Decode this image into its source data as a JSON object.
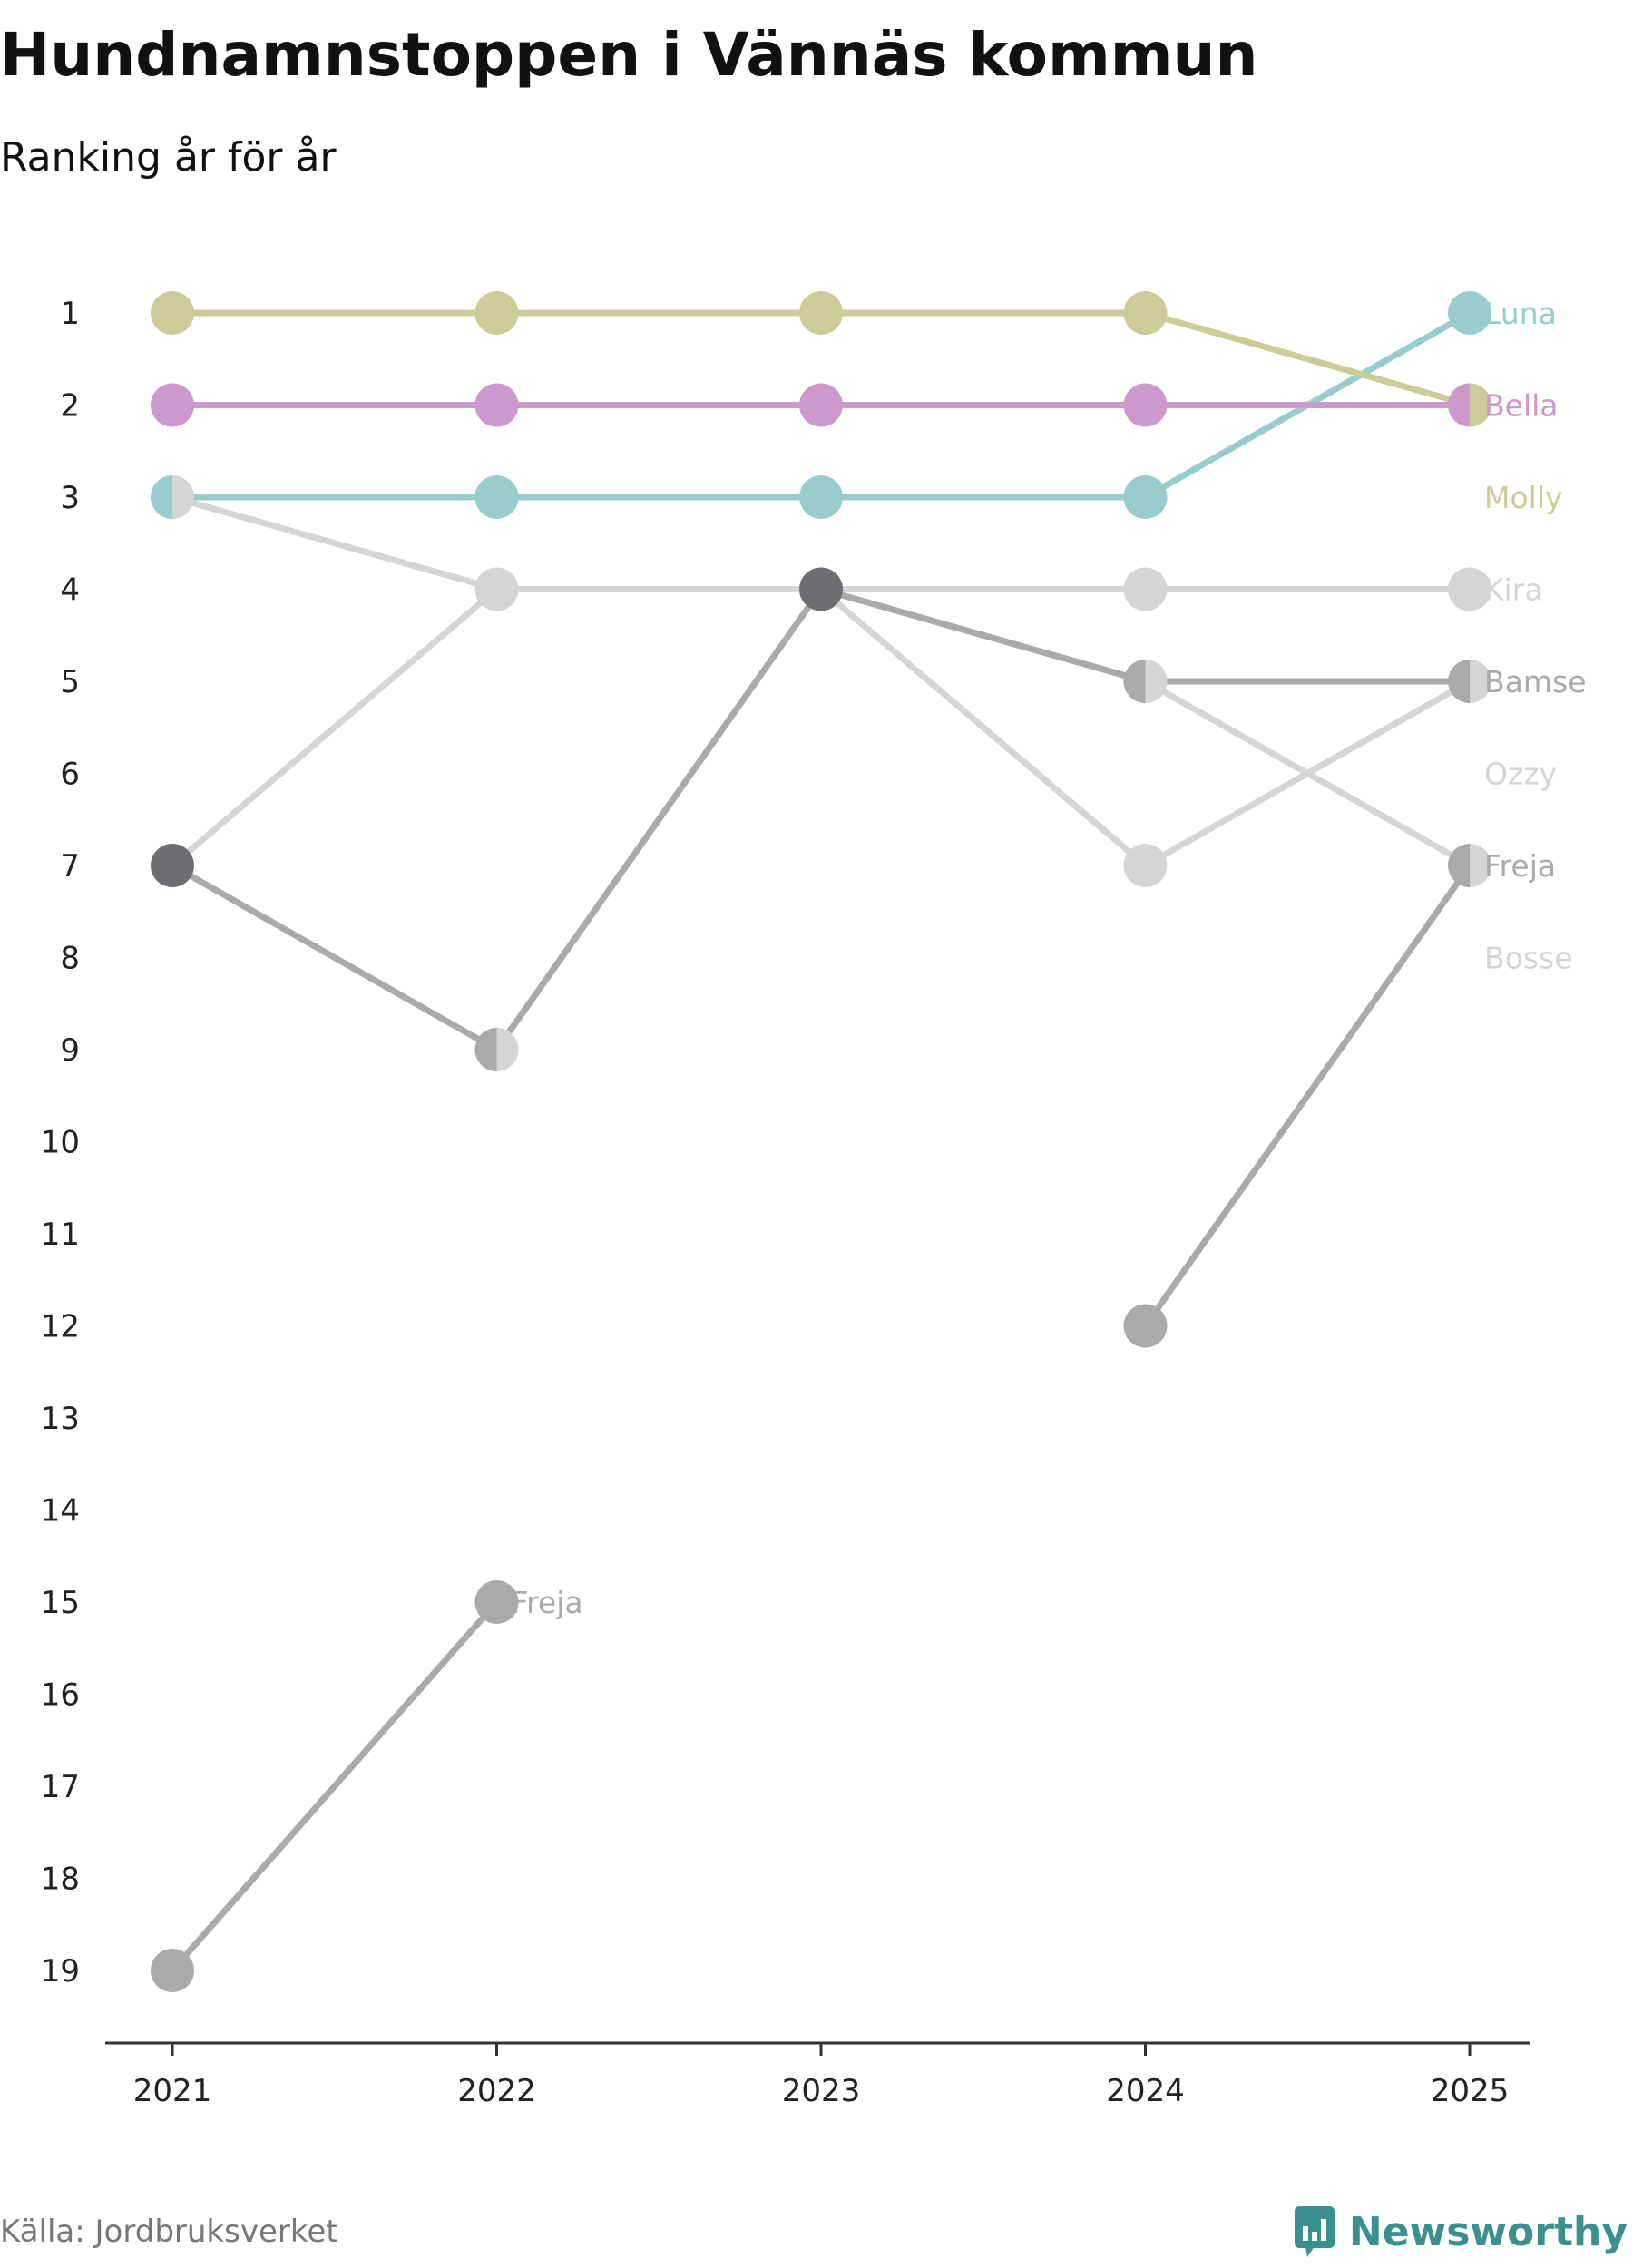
{
  "title": "Hundnamnstoppen i Vännäs kommun",
  "subtitle": "Ranking år för år",
  "source": "Källa: Jordbruksverket",
  "brand": "Newsworthy",
  "colors": {
    "molly": "#cccc99",
    "bella": "#cc99cc",
    "luna": "#99cccc",
    "light_gray": "#d5d5d5",
    "mid_gray": "#aaaaaa",
    "dark_gray": "#6e6e72",
    "brand": "#3a8f8f"
  },
  "chart_data": {
    "type": "line",
    "subtype": "bump",
    "categories": [
      "2021",
      "2022",
      "2023",
      "2024",
      "2025"
    ],
    "ylim": [
      1,
      19
    ],
    "y_reversed": true,
    "y_ticks": [
      "1",
      "2",
      "3",
      "4",
      "5",
      "6",
      "7",
      "8",
      "9",
      "10",
      "11",
      "12",
      "13",
      "14",
      "15",
      "16",
      "17",
      "18",
      "19"
    ],
    "series": [
      {
        "name": "Molly",
        "color": "molly",
        "ranks": [
          1,
          1,
          1,
          1,
          2
        ],
        "end_label_rank": 3
      },
      {
        "name": "Bella",
        "color": "bella",
        "ranks": [
          2,
          2,
          2,
          2,
          2
        ],
        "end_label_rank": 2
      },
      {
        "name": "Luna",
        "color": "luna",
        "ranks": [
          3,
          3,
          3,
          3,
          1
        ],
        "end_label_rank": 1
      },
      {
        "name": "Kira",
        "color": "light_gray",
        "ranks": [
          7,
          4,
          4,
          4,
          4
        ],
        "end_label_rank": 4
      },
      {
        "name": "Bamse",
        "color": "mid_gray",
        "ranks": [
          7,
          9,
          4,
          5,
          5
        ],
        "end_label_rank": 5
      },
      {
        "name": "Ozzy",
        "color": "light_gray",
        "ranks": [
          3,
          4,
          4,
          7,
          5
        ],
        "end_label_rank": 6
      },
      {
        "name": "Freja",
        "color": "light_gray",
        "ranks": [
          null,
          null,
          4,
          5,
          7
        ],
        "end_label_rank": 7
      },
      {
        "name": "Bosse",
        "color": "mid_gray",
        "ranks": [
          null,
          null,
          null,
          12,
          7
        ],
        "end_label_rank": 8
      },
      {
        "name": "Freja 2021–2022",
        "color": "mid_gray",
        "ranks": [
          19,
          15,
          null,
          null,
          null
        ]
      }
    ],
    "end_labels": [
      {
        "text": "Luna",
        "rank": 1,
        "color": "luna"
      },
      {
        "text": "Bella",
        "rank": 2,
        "color": "bella"
      },
      {
        "text": "Molly",
        "rank": 3,
        "color": "molly"
      },
      {
        "text": "Kira",
        "rank": 4,
        "color": "light_gray"
      },
      {
        "text": "Bamse",
        "rank": 5,
        "color": "mid_gray"
      },
      {
        "text": "Ozzy",
        "rank": 6,
        "color": "light_gray"
      },
      {
        "text": "Freja",
        "rank": 7,
        "color": "mid_gray"
      },
      {
        "text": "Bosse",
        "rank": 8,
        "color": "light_gray"
      }
    ],
    "inline_labels": [
      {
        "text": "Freja",
        "year": "2022",
        "rank": 15,
        "color": "mid_gray"
      }
    ],
    "points": [
      {
        "year": "2021",
        "rank": 1,
        "colors": [
          "molly"
        ]
      },
      {
        "year": "2022",
        "rank": 1,
        "colors": [
          "molly"
        ]
      },
      {
        "year": "2023",
        "rank": 1,
        "colors": [
          "molly"
        ]
      },
      {
        "year": "2024",
        "rank": 1,
        "colors": [
          "molly"
        ]
      },
      {
        "year": "2021",
        "rank": 2,
        "colors": [
          "bella"
        ]
      },
      {
        "year": "2022",
        "rank": 2,
        "colors": [
          "bella"
        ]
      },
      {
        "year": "2023",
        "rank": 2,
        "colors": [
          "bella"
        ]
      },
      {
        "year": "2024",
        "rank": 2,
        "colors": [
          "bella"
        ]
      },
      {
        "year": "2025",
        "rank": 2,
        "colors": [
          "bella",
          "molly"
        ]
      },
      {
        "year": "2021",
        "rank": 3,
        "colors": [
          "luna",
          "light_gray"
        ]
      },
      {
        "year": "2022",
        "rank": 3,
        "colors": [
          "luna"
        ]
      },
      {
        "year": "2023",
        "rank": 3,
        "colors": [
          "luna"
        ]
      },
      {
        "year": "2024",
        "rank": 3,
        "colors": [
          "luna"
        ]
      },
      {
        "year": "2025",
        "rank": 1,
        "colors": [
          "luna"
        ]
      },
      {
        "year": "2021",
        "rank": 7,
        "colors": [
          "dark_gray"
        ]
      },
      {
        "year": "2022",
        "rank": 4,
        "colors": [
          "light_gray"
        ]
      },
      {
        "year": "2022",
        "rank": 9,
        "colors": [
          "mid_gray",
          "light_gray"
        ]
      },
      {
        "year": "2023",
        "rank": 4,
        "colors": [
          "dark_gray"
        ]
      },
      {
        "year": "2024",
        "rank": 4,
        "colors": [
          "light_gray"
        ]
      },
      {
        "year": "2024",
        "rank": 5,
        "colors": [
          "mid_gray",
          "light_gray"
        ]
      },
      {
        "year": "2024",
        "rank": 7,
        "colors": [
          "light_gray"
        ]
      },
      {
        "year": "2024",
        "rank": 12,
        "colors": [
          "mid_gray"
        ]
      },
      {
        "year": "2025",
        "rank": 4,
        "colors": [
          "light_gray"
        ]
      },
      {
        "year": "2025",
        "rank": 5,
        "colors": [
          "mid_gray",
          "light_gray"
        ]
      },
      {
        "year": "2025",
        "rank": 7,
        "colors": [
          "mid_gray",
          "light_gray"
        ]
      },
      {
        "year": "2021",
        "rank": 19,
        "colors": [
          "mid_gray"
        ]
      },
      {
        "year": "2022",
        "rank": 15,
        "colors": [
          "mid_gray"
        ]
      }
    ]
  }
}
